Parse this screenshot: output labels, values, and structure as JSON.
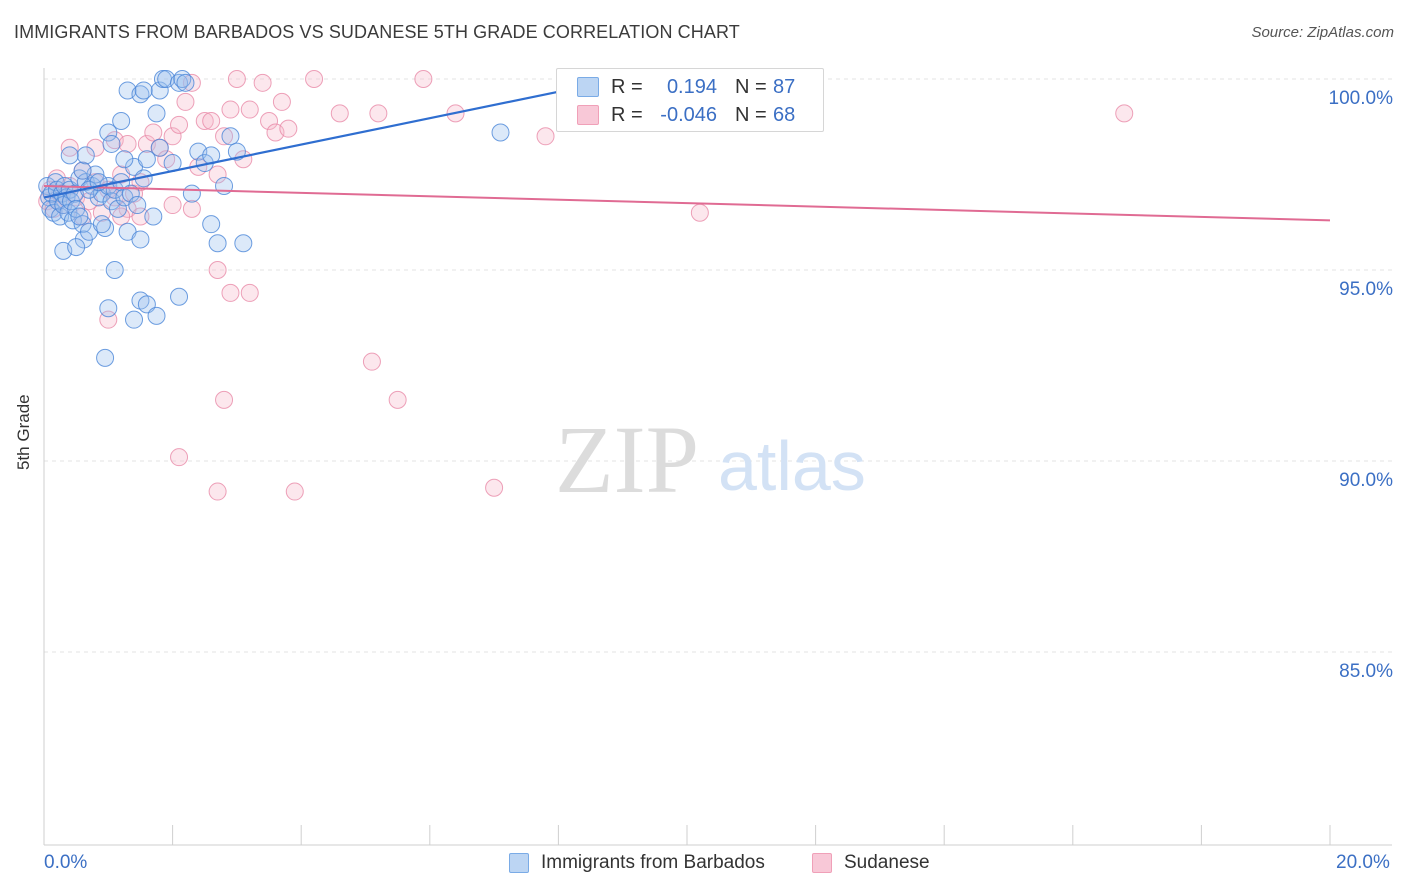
{
  "title": "IMMIGRANTS FROM BARBADOS VS SUDANESE 5TH GRADE CORRELATION CHART",
  "source": "Source: ZipAtlas.com",
  "watermark": {
    "zip": "ZIP",
    "atlas": "atlas"
  },
  "legend": {
    "series1": {
      "r_label": "R =",
      "r_value": "0.194",
      "n_label": "N =",
      "n_value": "87",
      "color": "#7aabe6"
    },
    "series2": {
      "r_label": "R =",
      "r_value": "-0.046",
      "n_label": "N =",
      "n_value": "68",
      "color": "#f0a0b8"
    }
  },
  "bottom_legend": {
    "series1": "Immigrants from Barbados",
    "series2": "Sudanese"
  },
  "x_tick_labels": {
    "left": "0.0%",
    "right": "20.0%"
  },
  "colors": {
    "blue": "#4a86d8",
    "blue_line": "#2f6ed0",
    "pink": "#e88aa8",
    "pink_line": "#e06b93",
    "axis_text": "#3b6fc4",
    "grid": "#e3e3e3"
  },
  "chart_data": {
    "type": "scatter",
    "title": "IMMIGRANTS FROM BARBADOS VS SUDANESE 5TH GRADE CORRELATION CHART",
    "xlabel": "",
    "ylabel": "5th Grade",
    "xlim": [
      0,
      20
    ],
    "ylim": [
      80.5,
      100.8
    ],
    "y_ticks": [
      100,
      95,
      90,
      85
    ],
    "y_tick_labels": [
      "100.0%",
      "95.0%",
      "90.0%",
      "85.0%"
    ],
    "series": [
      {
        "name": "Immigrants from Barbados",
        "r": 0.194,
        "n": 87,
        "trend": {
          "x": [
            0,
            8.1
          ],
          "y": [
            96.9,
            99.7
          ]
        },
        "points": [
          [
            0.05,
            97.2
          ],
          [
            0.08,
            96.9
          ],
          [
            0.1,
            96.6
          ],
          [
            0.12,
            97.0
          ],
          [
            0.15,
            96.5
          ],
          [
            0.18,
            97.3
          ],
          [
            0.2,
            97.1
          ],
          [
            0.22,
            96.8
          ],
          [
            0.25,
            96.4
          ],
          [
            0.28,
            97.0
          ],
          [
            0.3,
            96.7
          ],
          [
            0.32,
            97.2
          ],
          [
            0.35,
            96.9
          ],
          [
            0.38,
            96.5
          ],
          [
            0.4,
            97.1
          ],
          [
            0.42,
            96.8
          ],
          [
            0.45,
            96.3
          ],
          [
            0.48,
            97.0
          ],
          [
            0.5,
            96.6
          ],
          [
            0.55,
            97.4
          ],
          [
            0.6,
            96.2
          ],
          [
            0.62,
            95.8
          ],
          [
            0.65,
            97.3
          ],
          [
            0.7,
            96.0
          ],
          [
            0.75,
            97.2
          ],
          [
            0.8,
            97.5
          ],
          [
            0.85,
            96.9
          ],
          [
            0.9,
            97.0
          ],
          [
            0.95,
            96.1
          ],
          [
            1.0,
            97.2
          ],
          [
            1.05,
            96.8
          ],
          [
            1.1,
            97.1
          ],
          [
            1.15,
            96.6
          ],
          [
            1.2,
            97.3
          ],
          [
            1.25,
            96.9
          ],
          [
            1.3,
            96.0
          ],
          [
            1.35,
            97.0
          ],
          [
            1.4,
            97.7
          ],
          [
            1.45,
            96.7
          ],
          [
            1.5,
            95.8
          ],
          [
            1.55,
            97.4
          ],
          [
            1.6,
            97.9
          ],
          [
            1.7,
            96.4
          ],
          [
            1.75,
            99.1
          ],
          [
            1.8,
            99.7
          ],
          [
            1.85,
            100.0
          ],
          [
            1.9,
            100.0
          ],
          [
            2.0,
            97.8
          ],
          [
            2.1,
            99.9
          ],
          [
            2.15,
            100.0
          ],
          [
            2.2,
            99.9
          ],
          [
            2.3,
            97.0
          ],
          [
            2.4,
            98.1
          ],
          [
            2.5,
            97.8
          ],
          [
            2.6,
            98.0
          ],
          [
            2.7,
            95.7
          ],
          [
            2.8,
            97.2
          ],
          [
            2.9,
            98.5
          ],
          [
            3.0,
            98.1
          ],
          [
            3.1,
            95.7
          ],
          [
            1.3,
            99.7
          ],
          [
            1.5,
            99.6
          ],
          [
            1.55,
            99.7
          ],
          [
            1.0,
            98.6
          ],
          [
            1.05,
            98.3
          ],
          [
            1.2,
            98.9
          ],
          [
            0.6,
            97.6
          ],
          [
            0.65,
            98.0
          ],
          [
            0.3,
            95.5
          ],
          [
            0.5,
            95.6
          ],
          [
            0.55,
            96.4
          ],
          [
            0.9,
            96.2
          ],
          [
            1.1,
            95.0
          ],
          [
            1.5,
            94.2
          ],
          [
            1.6,
            94.1
          ],
          [
            1.75,
            93.8
          ],
          [
            2.1,
            94.3
          ],
          [
            1.0,
            94.0
          ],
          [
            0.95,
            92.7
          ],
          [
            1.4,
            93.7
          ],
          [
            2.6,
            96.2
          ],
          [
            1.8,
            98.2
          ],
          [
            1.25,
            97.9
          ],
          [
            0.4,
            98.0
          ],
          [
            7.1,
            98.6
          ],
          [
            0.7,
            97.1
          ],
          [
            0.85,
            97.3
          ]
        ]
      },
      {
        "name": "Sudanese",
        "r": -0.046,
        "n": 68,
        "trend": {
          "x": [
            0,
            20
          ],
          "y": [
            97.2,
            96.3
          ]
        },
        "points": [
          [
            0.05,
            96.8
          ],
          [
            0.1,
            97.1
          ],
          [
            0.15,
            96.6
          ],
          [
            0.2,
            97.4
          ],
          [
            0.25,
            97.0
          ],
          [
            0.3,
            96.7
          ],
          [
            0.4,
            97.2
          ],
          [
            0.5,
            96.9
          ],
          [
            0.6,
            97.6
          ],
          [
            0.7,
            96.8
          ],
          [
            0.8,
            97.3
          ],
          [
            0.9,
            96.5
          ],
          [
            1.0,
            97.1
          ],
          [
            1.1,
            96.9
          ],
          [
            1.2,
            97.5
          ],
          [
            1.3,
            96.6
          ],
          [
            1.4,
            97.0
          ],
          [
            1.5,
            97.3
          ],
          [
            1.6,
            98.3
          ],
          [
            1.7,
            98.6
          ],
          [
            1.8,
            98.2
          ],
          [
            1.9,
            97.9
          ],
          [
            2.0,
            98.5
          ],
          [
            2.1,
            98.8
          ],
          [
            2.2,
            99.4
          ],
          [
            2.3,
            99.9
          ],
          [
            2.4,
            97.7
          ],
          [
            2.5,
            98.9
          ],
          [
            2.6,
            98.9
          ],
          [
            2.7,
            97.5
          ],
          [
            2.8,
            98.5
          ],
          [
            2.9,
            99.2
          ],
          [
            3.0,
            100.0
          ],
          [
            3.1,
            97.9
          ],
          [
            3.2,
            99.2
          ],
          [
            3.4,
            99.9
          ],
          [
            3.5,
            98.9
          ],
          [
            3.6,
            98.6
          ],
          [
            3.7,
            99.4
          ],
          [
            3.8,
            98.7
          ],
          [
            4.2,
            100.0
          ],
          [
            4.6,
            99.1
          ],
          [
            5.2,
            99.1
          ],
          [
            5.9,
            100.0
          ],
          [
            6.4,
            99.1
          ],
          [
            1.1,
            98.4
          ],
          [
            0.8,
            98.2
          ],
          [
            1.3,
            98.3
          ],
          [
            2.0,
            96.7
          ],
          [
            2.3,
            96.6
          ],
          [
            1.5,
            96.4
          ],
          [
            1.2,
            96.4
          ],
          [
            2.7,
            95.0
          ],
          [
            2.9,
            94.4
          ],
          [
            3.2,
            94.4
          ],
          [
            1.0,
            93.7
          ],
          [
            2.8,
            91.6
          ],
          [
            5.1,
            92.6
          ],
          [
            5.5,
            91.6
          ],
          [
            2.1,
            90.1
          ],
          [
            2.7,
            89.2
          ],
          [
            3.9,
            89.2
          ],
          [
            7.0,
            89.3
          ],
          [
            10.2,
            96.5
          ],
          [
            16.8,
            99.1
          ],
          [
            7.8,
            98.5
          ],
          [
            0.4,
            98.2
          ],
          [
            0.6,
            96.4
          ]
        ]
      }
    ]
  }
}
